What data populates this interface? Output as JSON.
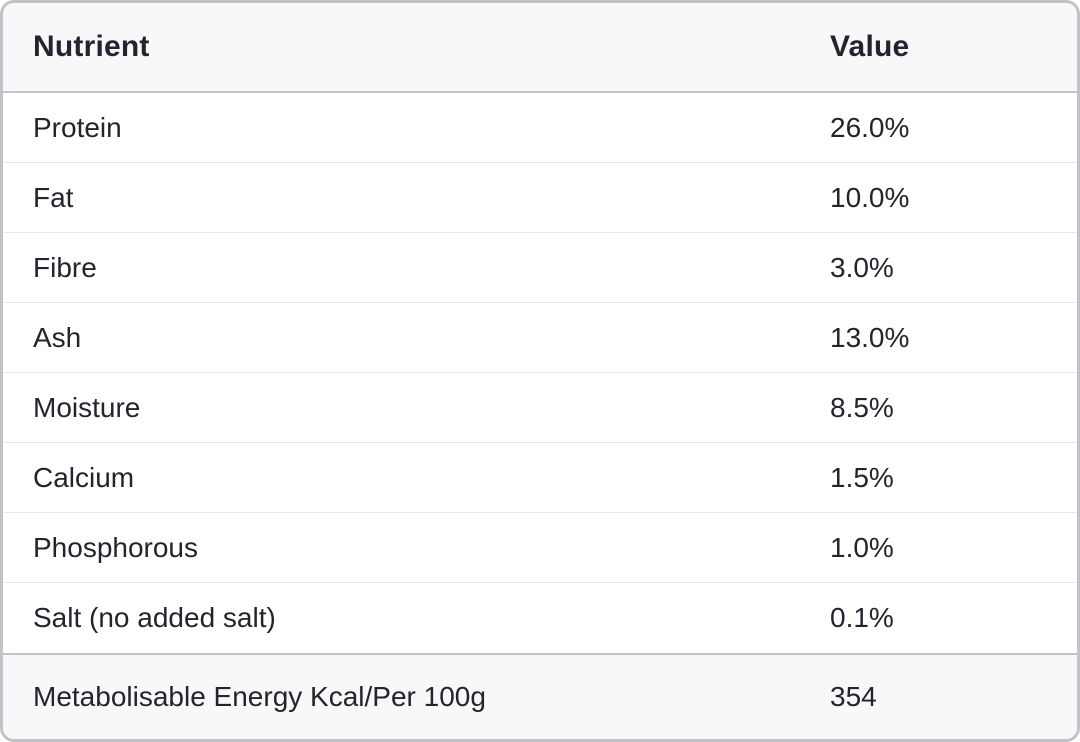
{
  "table": {
    "columns": [
      {
        "label": "Nutrient"
      },
      {
        "label": "Value"
      }
    ],
    "rows": [
      {
        "nutrient": "Protein",
        "value": "26.0%"
      },
      {
        "nutrient": "Fat",
        "value": "10.0%"
      },
      {
        "nutrient": "Fibre",
        "value": "3.0%"
      },
      {
        "nutrient": "Ash",
        "value": "13.0%"
      },
      {
        "nutrient": "Moisture",
        "value": "8.5%"
      },
      {
        "nutrient": "Calcium",
        "value": "1.5%"
      },
      {
        "nutrient": "Phosphorous",
        "value": "1.0%"
      },
      {
        "nutrient": "Salt (no added salt)",
        "value": "0.1%"
      }
    ],
    "footer_row": {
      "nutrient": "Metabolisable Energy Kcal/Per 100g",
      "value": "354"
    }
  },
  "colors": {
    "card_border": "#c2c3c8",
    "header_bg": "#f8f8f9",
    "footer_bg": "#f8f8f9",
    "row_bg": "#ffffff",
    "row_divider": "#e4e6e9",
    "strong_divider": "#c4c5ca",
    "text_primary": "#22252d",
    "page_bg": "#ffffff"
  }
}
